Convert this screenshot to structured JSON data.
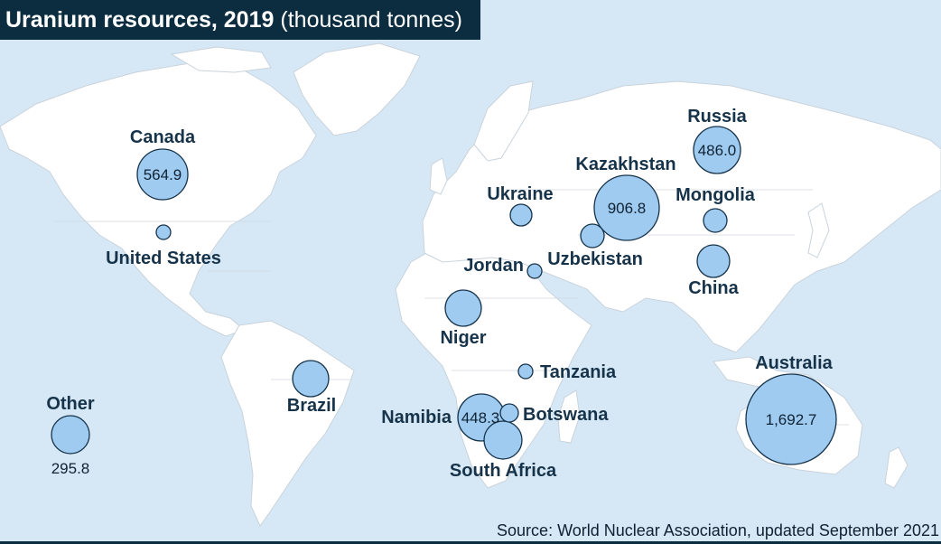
{
  "title": {
    "main": "Uranium resources, 2019",
    "unit": "(thousand tonnes)"
  },
  "source": "Source: World Nuclear Association, updated September 2021",
  "colors": {
    "bubble_fill": "#9fcbf0",
    "bubble_stroke": "#16334a",
    "sea": "#d6e8f5",
    "land": "#ffffff",
    "title_bg": "#0c2d40"
  },
  "bubbles": {
    "canada": {
      "label": "Canada",
      "value": "564.9"
    },
    "united_states": {
      "label": "United States"
    },
    "russia": {
      "label": "Russia",
      "value": "486.0"
    },
    "kazakhstan": {
      "label": "Kazakhstan",
      "value": "906.8"
    },
    "ukraine": {
      "label": "Ukraine"
    },
    "mongolia": {
      "label": "Mongolia"
    },
    "uzbekistan": {
      "label": "Uzbekistan"
    },
    "jordan": {
      "label": "Jordan"
    },
    "china": {
      "label": "China"
    },
    "niger": {
      "label": "Niger"
    },
    "tanzania": {
      "label": "Tanzania"
    },
    "brazil": {
      "label": "Brazil"
    },
    "australia": {
      "label": "Australia",
      "value": "1,692.7"
    },
    "namibia": {
      "label": "Namibia",
      "value": "448.3"
    },
    "botswana": {
      "label": "Botswana"
    },
    "south_africa": {
      "label": "South Africa"
    },
    "other": {
      "label": "Other",
      "value": "295.8"
    }
  }
}
